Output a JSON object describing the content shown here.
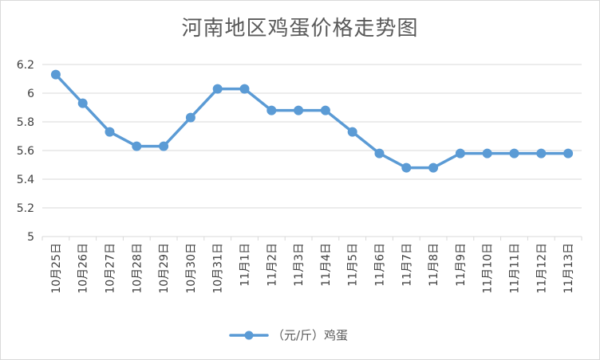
{
  "chart_data": {
    "type": "line",
    "title": "河南地区鸡蛋价格走势图",
    "categories": [
      "10月25日",
      "10月26日",
      "10月27日",
      "10月28日",
      "10月29日",
      "10月30日",
      "10月31日",
      "11月1日",
      "11月2日",
      "11月3日",
      "11月4日",
      "11月5日",
      "11月6日",
      "11月7日",
      "11月8日",
      "11月9日",
      "11月10日",
      "11月11日",
      "11月12日",
      "11月13日"
    ],
    "series": [
      {
        "name": "（元/斤）鸡蛋",
        "color": "#5b9bd5",
        "values": [
          6.13,
          5.93,
          5.73,
          5.63,
          5.63,
          5.83,
          6.03,
          6.03,
          5.88,
          5.88,
          5.88,
          5.73,
          5.58,
          5.48,
          5.48,
          5.58,
          5.58,
          5.58,
          5.58,
          5.58
        ]
      }
    ],
    "ylim": [
      5,
      6.2
    ],
    "yticks": [
      "5",
      "5.2",
      "5.4",
      "5.6",
      "5.8",
      "6",
      "6.2"
    ],
    "ytick_values": [
      5,
      5.2,
      5.4,
      5.6,
      5.8,
      6,
      6.2
    ],
    "grid": true,
    "legend": "bottom"
  }
}
